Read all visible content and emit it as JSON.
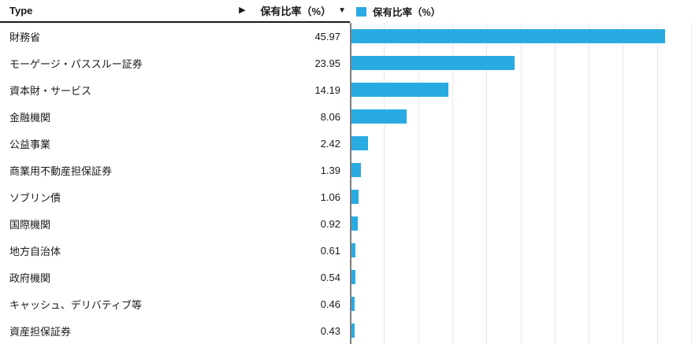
{
  "header": {
    "type_column_label": "Type",
    "scroll_arrow": "▶",
    "value_column_label": "保有比率（%）",
    "sort_indicator": "▼"
  },
  "legend": {
    "label": "保有比率（%）"
  },
  "chart_data": {
    "type": "bar",
    "orientation": "horizontal",
    "series_name": "保有比率（%）",
    "categories": [
      "財務省",
      "モーゲージ・パススルー証券",
      "資本財・サービス",
      "金融機関",
      "公益事業",
      "商業用不動産担保証券",
      "ソブリン債",
      "国際機関",
      "地方自治体",
      "政府機関",
      "キャッシュ、デリバティブ等",
      "資産担保証券"
    ],
    "values": [
      45.97,
      23.95,
      14.19,
      8.06,
      2.42,
      1.39,
      1.06,
      0.92,
      0.61,
      0.54,
      0.46,
      0.43
    ],
    "value_decimals": 2,
    "xlim": [
      0,
      50
    ],
    "gridline_step": 5,
    "grid": true,
    "legend_position": "top",
    "sort": "descending"
  },
  "colors": {
    "bar": "#29abe2",
    "gridline": "#e8e8e8",
    "axis": "#7d7d7d",
    "header_rule": "#1a1a1a",
    "text": "#1a1a1a"
  }
}
